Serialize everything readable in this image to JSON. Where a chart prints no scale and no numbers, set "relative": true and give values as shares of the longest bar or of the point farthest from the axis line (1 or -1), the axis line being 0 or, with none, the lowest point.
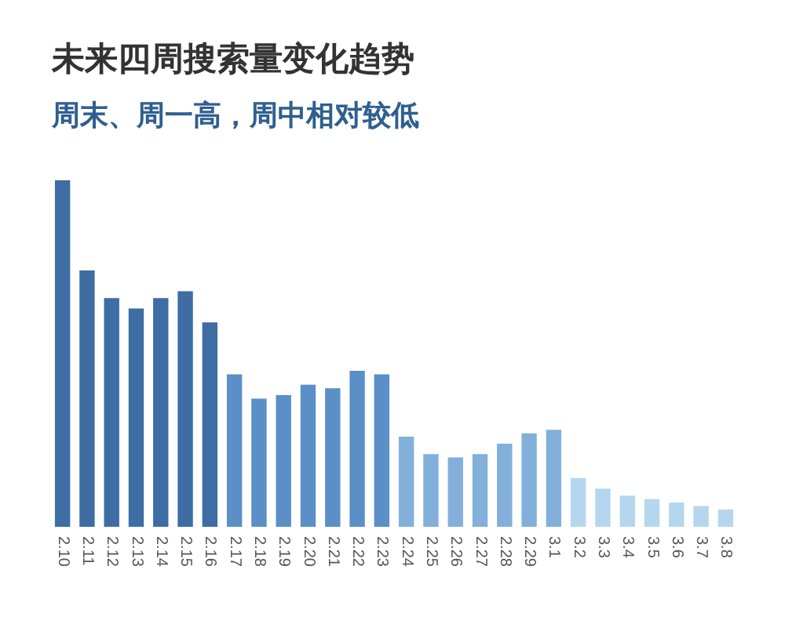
{
  "chart_data": {
    "type": "bar",
    "title": "未来四周搜索量变化趋势",
    "subtitle": "周末、周一高，周中相对较低",
    "categories": [
      "2.10",
      "2.11",
      "2.12",
      "2.13",
      "2.14",
      "2.15",
      "2.16",
      "2.17",
      "2.18",
      "2.19",
      "2.20",
      "2.21",
      "2.22",
      "2.23",
      "2.24",
      "2.25",
      "2.26",
      "2.27",
      "2.28",
      "2.29",
      "3.1",
      "3.2",
      "3.3",
      "3.4",
      "3.5",
      "3.6",
      "3.7",
      "3.8"
    ],
    "values": [
      1,
      0.74,
      0.66,
      0.63,
      0.66,
      0.68,
      0.59,
      0.44,
      0.37,
      0.38,
      0.41,
      0.4,
      0.45,
      0.44,
      0.26,
      0.21,
      0.2,
      0.21,
      0.24,
      0.27,
      0.28,
      0.14,
      0.11,
      0.09,
      0.08,
      0.07,
      0.06,
      0.05
    ],
    "colors": [
      "#3d6da3",
      "#3d6da3",
      "#3d6da3",
      "#3d6da3",
      "#3d6da3",
      "#3d6da3",
      "#3d6da3",
      "#5b8fc7",
      "#5b8fc7",
      "#5b8fc7",
      "#5b8fc7",
      "#5b8fc7",
      "#5b8fc7",
      "#5b8fc7",
      "#82b0da",
      "#82b0da",
      "#82b0da",
      "#82b0da",
      "#82b0da",
      "#82b0da",
      "#82b0da",
      "#b5d6ef",
      "#b5d6ef",
      "#b5d6ef",
      "#b5d6ef",
      "#b5d6ef",
      "#b5d6ef",
      "#b5d6ef"
    ],
    "relative": true
  }
}
